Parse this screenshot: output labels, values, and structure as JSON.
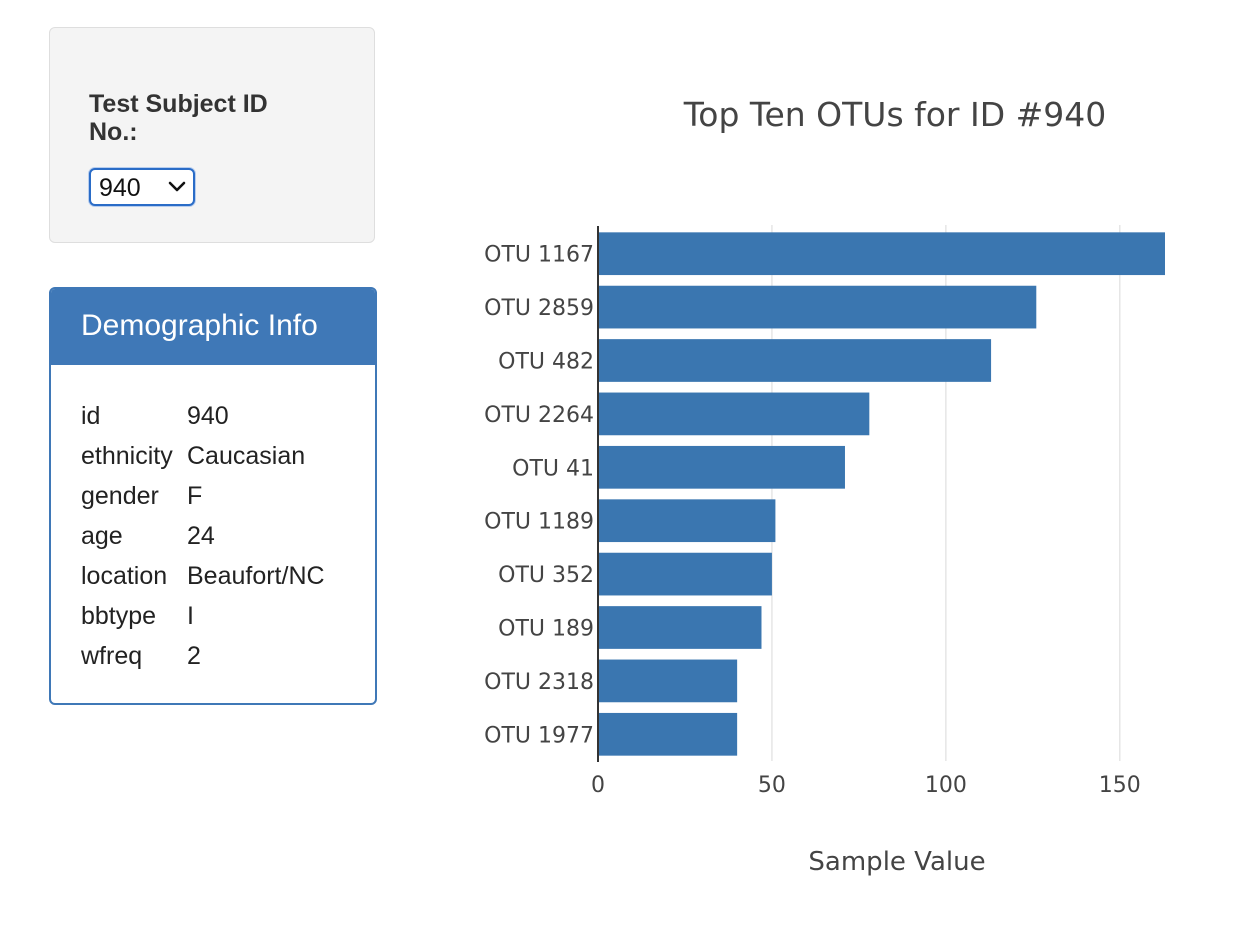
{
  "selector": {
    "label": "Test Subject ID No.:",
    "selected": "940"
  },
  "demographics": {
    "title": "Demographic Info",
    "rows": [
      {
        "key": "id",
        "value": "940"
      },
      {
        "key": "ethnicity",
        "value": "Caucasian"
      },
      {
        "key": "gender",
        "value": "F"
      },
      {
        "key": "age",
        "value": "24"
      },
      {
        "key": "location",
        "value": "Beaufort/NC"
      },
      {
        "key": "bbtype",
        "value": "I"
      },
      {
        "key": "wfreq",
        "value": "2"
      }
    ]
  },
  "colors": {
    "bar": "#3a76b0",
    "panel_heading": "#3f78b7",
    "gridline": "#e6e6e6"
  },
  "icons": {
    "select_arrow": "chevron-down-icon"
  },
  "chart_data": {
    "type": "bar",
    "orientation": "horizontal",
    "title": "Top Ten OTUs for ID #940",
    "xlabel": "Sample Value",
    "ylabel": "",
    "categories": [
      "OTU 1167",
      "OTU 2859",
      "OTU 482",
      "OTU 2264",
      "OTU 41",
      "OTU 1189",
      "OTU 352",
      "OTU 189",
      "OTU 2318",
      "OTU 1977"
    ],
    "values": [
      163,
      126,
      113,
      78,
      71,
      51,
      50,
      47,
      40,
      40
    ],
    "xlim": [
      0,
      163
    ],
    "xticks": [
      0,
      50,
      100,
      150
    ],
    "grid": "vertical",
    "legend": "none"
  }
}
